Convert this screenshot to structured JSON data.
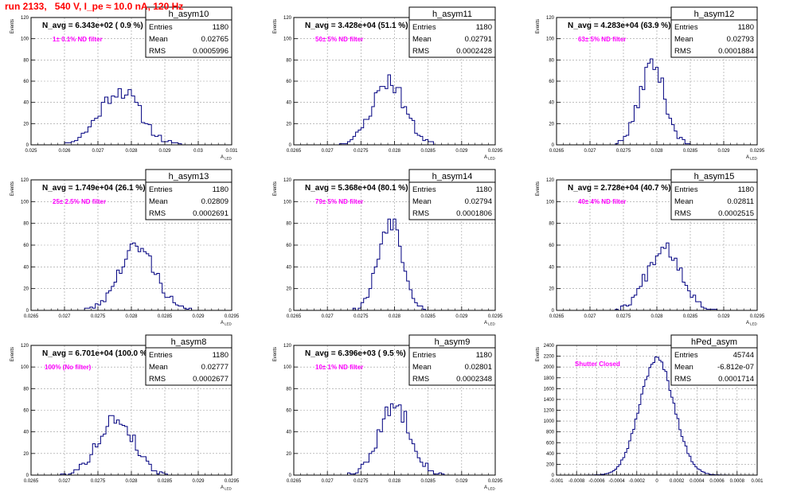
{
  "page": {
    "run_title": "run 2133,   540 V, I_pe ≈ 10.0 nA, 120 Hz"
  },
  "colors": {
    "line": "#000080",
    "frame": "#000000",
    "grid": "#999999",
    "annotation": "#ff00ff",
    "title_red": "#ff0000"
  },
  "chart_data": [
    {
      "type": "histogram",
      "hist_name": "h_asym10",
      "ylabel": "Events",
      "xlabel": "A_LED",
      "navg": "N_avg = 6.343e+02 ( 0.9 %)",
      "filter": "1± 0.1% ND filter",
      "stats": {
        "entries": "1180",
        "mean": "0.02765",
        "rms": "0.0005996"
      },
      "xlim": [
        0.025,
        0.031
      ],
      "ylim": [
        0,
        120
      ],
      "xticks": [
        "0.025",
        "0.026",
        "0.027",
        "0.028",
        "0.029",
        "0.03",
        "0.031"
      ],
      "xtick_values": [
        0.025,
        0.026,
        0.027,
        0.028,
        0.029,
        0.03,
        0.031
      ],
      "yticks": [
        0,
        20,
        40,
        60,
        80,
        100,
        120
      ],
      "dist": {
        "mean": 0.02765,
        "rms": 0.0005996,
        "peak": 52,
        "bins": 60,
        "seed": 11
      }
    },
    {
      "type": "histogram",
      "hist_name": "h_asym11",
      "ylabel": "Events",
      "xlabel": "A_LED",
      "navg": "N_avg = 3.428e+04 (51.1 %)",
      "filter": "50± 5% ND filter",
      "stats": {
        "entries": "1180",
        "mean": "0.02791",
        "rms": "0.0002428"
      },
      "xlim": [
        0.0265,
        0.0295
      ],
      "ylim": [
        0,
        120
      ],
      "xticks": [
        "0.0265",
        "0.027",
        "0.0275",
        "0.028",
        "0.0285",
        "0.029",
        "0.0295"
      ],
      "xtick_values": [
        0.0265,
        0.027,
        0.0275,
        0.028,
        0.0285,
        0.029,
        0.0295
      ],
      "yticks": [
        0,
        20,
        40,
        60,
        80,
        100,
        120
      ],
      "dist": {
        "mean": 0.02791,
        "rms": 0.0002428,
        "peak": 60,
        "bins": 75,
        "seed": 23
      }
    },
    {
      "type": "histogram",
      "hist_name": "h_asym12",
      "ylabel": "Events",
      "xlabel": "A_LED",
      "navg": "N_avg = 4.283e+04 (63.9 %)",
      "filter": "63± 5% ND filter",
      "stats": {
        "entries": "1180",
        "mean": "0.02793",
        "rms": "0.0001884"
      },
      "xlim": [
        0.0265,
        0.0295
      ],
      "ylim": [
        0,
        120
      ],
      "xticks": [
        "0.0265",
        "0.027",
        "0.0275",
        "0.028",
        "0.0285",
        "0.029",
        "0.0295"
      ],
      "xtick_values": [
        0.0265,
        0.027,
        0.0275,
        0.028,
        0.0285,
        0.029,
        0.0295
      ],
      "yticks": [
        0,
        20,
        40,
        60,
        80,
        100,
        120
      ],
      "dist": {
        "mean": 0.02793,
        "rms": 0.0001884,
        "peak": 76,
        "bins": 75,
        "seed": 37
      }
    },
    {
      "type": "histogram",
      "hist_name": "h_asym13",
      "ylabel": "Events",
      "xlabel": "A_LED",
      "navg": "N_avg = 1.749e+04 (26.1 %)",
      "filter": "25± 2.5% ND filter",
      "stats": {
        "entries": "1180",
        "mean": "0.02809",
        "rms": "0.0002691"
      },
      "xlim": [
        0.0265,
        0.0295
      ],
      "ylim": [
        0,
        120
      ],
      "xticks": [
        "0.0265",
        "0.027",
        "0.0275",
        "0.028",
        "0.0285",
        "0.029",
        "0.0295"
      ],
      "xtick_values": [
        0.0265,
        0.027,
        0.0275,
        0.028,
        0.0285,
        0.029,
        0.0295
      ],
      "yticks": [
        0,
        20,
        40,
        60,
        80,
        100,
        120
      ],
      "dist": {
        "mean": 0.02809,
        "rms": 0.0002691,
        "peak": 58,
        "bins": 75,
        "seed": 41
      }
    },
    {
      "type": "histogram",
      "hist_name": "h_asym14",
      "ylabel": "Events",
      "xlabel": "A_LED",
      "navg": "N_avg = 5.368e+04 (80.1 %)",
      "filter": "79± 5% ND filter",
      "stats": {
        "entries": "1180",
        "mean": "0.02794",
        "rms": "0.0001806"
      },
      "xlim": [
        0.0265,
        0.0295
      ],
      "ylim": [
        0,
        120
      ],
      "xticks": [
        "0.0265",
        "0.027",
        "0.0275",
        "0.028",
        "0.0285",
        "0.029",
        "0.0295"
      ],
      "xtick_values": [
        0.0265,
        0.027,
        0.0275,
        0.028,
        0.0285,
        0.029,
        0.0295
      ],
      "yticks": [
        0,
        20,
        40,
        60,
        80,
        100,
        120
      ],
      "dist": {
        "mean": 0.02794,
        "rms": 0.0001806,
        "peak": 84,
        "bins": 75,
        "seed": 53
      }
    },
    {
      "type": "histogram",
      "hist_name": "h_asym15",
      "ylabel": "Events",
      "xlabel": "A_LED",
      "navg": "N_avg = 2.728e+04 (40.7 %)",
      "filter": "40± 4% ND filter",
      "stats": {
        "entries": "1180",
        "mean": "0.02811",
        "rms": "0.0002515"
      },
      "xlim": [
        0.0265,
        0.0295
      ],
      "ylim": [
        0,
        120
      ],
      "xticks": [
        "0.0265",
        "0.027",
        "0.0275",
        "0.028",
        "0.0285",
        "0.029",
        "0.0295"
      ],
      "xtick_values": [
        0.0265,
        0.027,
        0.0275,
        0.028,
        0.0285,
        0.029,
        0.0295
      ],
      "yticks": [
        0,
        20,
        40,
        60,
        80,
        100,
        120
      ],
      "dist": {
        "mean": 0.02811,
        "rms": 0.0002515,
        "peak": 60,
        "bins": 75,
        "seed": 67
      }
    },
    {
      "type": "histogram",
      "hist_name": "h_asym8",
      "ylabel": "Events",
      "xlabel": "A_LED",
      "navg": "N_avg = 6.701e+04 (100.0 %)",
      "filter": "100% (No filter)",
      "stats": {
        "entries": "1180",
        "mean": "0.02777",
        "rms": "0.0002677"
      },
      "xlim": [
        0.0265,
        0.0295
      ],
      "ylim": [
        0,
        120
      ],
      "xticks": [
        "0.0265",
        "0.027",
        "0.0275",
        "0.028",
        "0.0285",
        "0.029",
        "0.0295"
      ],
      "xtick_values": [
        0.0265,
        0.027,
        0.0275,
        0.028,
        0.0285,
        0.029,
        0.0295
      ],
      "yticks": [
        0,
        20,
        40,
        60,
        80,
        100,
        120
      ],
      "dist": {
        "mean": 0.02777,
        "rms": 0.0002677,
        "peak": 52,
        "bins": 75,
        "seed": 79
      }
    },
    {
      "type": "histogram",
      "hist_name": "h_asym9",
      "ylabel": "Events",
      "xlabel": "A_LED",
      "navg": "N_avg = 6.396e+03 ( 9.5 %)",
      "filter": "10± 1% ND filter",
      "stats": {
        "entries": "1180",
        "mean": "0.02801",
        "rms": "0.0002348"
      },
      "xlim": [
        0.0265,
        0.0295
      ],
      "ylim": [
        0,
        120
      ],
      "xticks": [
        "0.0265",
        "0.027",
        "0.0275",
        "0.028",
        "0.0285",
        "0.029",
        "0.0295"
      ],
      "xtick_values": [
        0.0265,
        0.027,
        0.0275,
        0.028,
        0.0285,
        0.029,
        0.0295
      ],
      "yticks": [
        0,
        20,
        40,
        60,
        80,
        100,
        120
      ],
      "dist": {
        "mean": 0.02801,
        "rms": 0.0002348,
        "peak": 64,
        "bins": 75,
        "seed": 83
      }
    },
    {
      "type": "histogram",
      "hist_name": "hPed_asym",
      "ylabel": "Events",
      "xlabel": "",
      "navg": "",
      "filter": "Shutter Closed",
      "stats": {
        "entries": "45744",
        "mean": "-6.812e-07",
        "rms": "0.0001714"
      },
      "xlim": [
        -0.001,
        0.001
      ],
      "ylim": [
        0,
        2400
      ],
      "xticks": [
        "-0.001",
        "-0.0008",
        "-0.0006",
        "-0.0004",
        "-0.0002",
        "0",
        "0.0002",
        "0.0004",
        "0.0006",
        "0.0008",
        "0.001"
      ],
      "xtick_values": [
        -0.001,
        -0.0008,
        -0.0006,
        -0.0004,
        -0.0002,
        0,
        0.0002,
        0.0004,
        0.0006,
        0.0008,
        0.001
      ],
      "yticks": [
        0,
        200,
        400,
        600,
        800,
        1000,
        1200,
        1400,
        1600,
        1800,
        2000,
        2200,
        2400
      ],
      "dist": {
        "mean": 0.0,
        "rms": 0.0001714,
        "peak": 2150,
        "bins": 100,
        "seed": 97
      }
    }
  ]
}
